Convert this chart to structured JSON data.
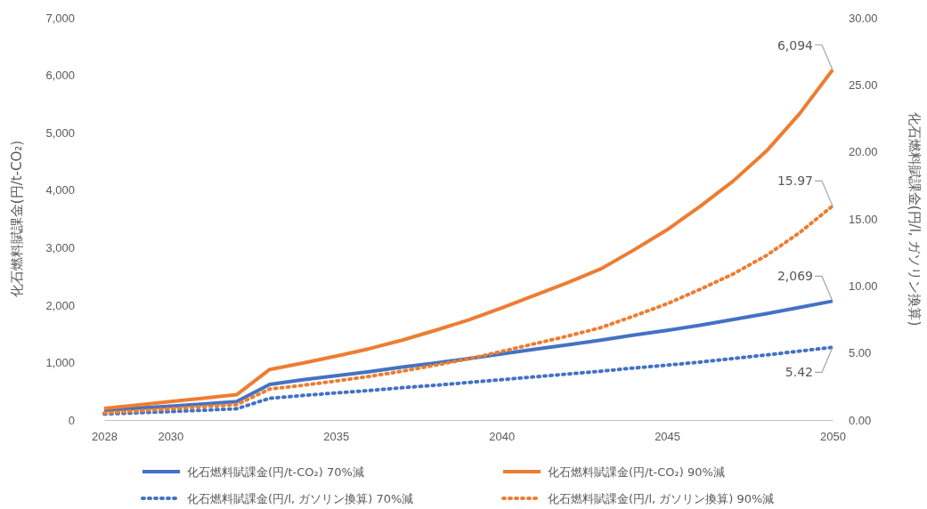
{
  "chart_data": {
    "type": "line",
    "xlabel": null,
    "ylabel": "化石燃料賦課金(円/t-CO₂)",
    "y2label": "化石燃料賦課金(円/l, ガソリン換算)",
    "x": [
      2028,
      2029,
      2030,
      2031,
      2032,
      2033,
      2034,
      2035,
      2036,
      2037,
      2038,
      2039,
      2040,
      2041,
      2042,
      2043,
      2044,
      2045,
      2046,
      2047,
      2048,
      2049,
      2050
    ],
    "xlim": [
      2028,
      2050
    ],
    "xticks": [
      2028,
      2030,
      2035,
      2040,
      2045,
      2050
    ],
    "ylim": [
      0,
      7000
    ],
    "yticks": [
      {
        "value": 0,
        "label": "0"
      },
      {
        "value": 1000,
        "label": "1,000"
      },
      {
        "value": 2000,
        "label": "2,000"
      },
      {
        "value": 3000,
        "label": "3,000"
      },
      {
        "value": 4000,
        "label": "4,000"
      },
      {
        "value": 5000,
        "label": "5,000"
      },
      {
        "value": 6000,
        "label": "6,000"
      },
      {
        "value": 7000,
        "label": "7,000"
      }
    ],
    "y2lim": [
      0,
      30
    ],
    "y2ticks": [
      {
        "value": 0,
        "label": "0.00"
      },
      {
        "value": 5,
        "label": "5.00"
      },
      {
        "value": 10,
        "label": "10.00"
      },
      {
        "value": 15,
        "label": "15.00"
      },
      {
        "value": 20,
        "label": "20.00"
      },
      {
        "value": 25,
        "label": "25.00"
      },
      {
        "value": 30,
        "label": "30.00"
      }
    ],
    "grid": false,
    "legend": "bottom",
    "marker": "none",
    "series": [
      {
        "name": "化石燃料賦課金(円/t-CO₂) 70%減",
        "color": "#4472c4",
        "line_style": "solid",
        "values": [
          170,
          205,
          240,
          280,
          320,
          620,
          700,
          770,
          840,
          920,
          990,
          1070,
          1150,
          1230,
          1310,
          1390,
          1480,
          1560,
          1650,
          1750,
          1850,
          1960,
          2069
        ],
        "value_labels": [
          null,
          null,
          null,
          null,
          null,
          null,
          null,
          null,
          null,
          null,
          null,
          null,
          null,
          null,
          null,
          null,
          null,
          null,
          null,
          null,
          null,
          null,
          "2,069"
        ]
      },
      {
        "name": "化石燃料賦課金(円/t-CO₂) 90%減",
        "color": "#ed7d31",
        "line_style": "solid",
        "values": [
          200,
          260,
          320,
          380,
          440,
          880,
          990,
          1110,
          1240,
          1390,
          1560,
          1740,
          1950,
          2170,
          2390,
          2630,
          2960,
          3310,
          3720,
          4160,
          4680,
          5330,
          6094
        ],
        "value_labels": [
          null,
          null,
          null,
          null,
          null,
          null,
          null,
          null,
          null,
          null,
          null,
          null,
          null,
          null,
          null,
          null,
          null,
          null,
          null,
          null,
          null,
          null,
          "6,094"
        ]
      },
      {
        "name": "化石燃料賦課金(円/l, ガソリン換算) 70%減",
        "color": "#4472c4",
        "line_style": "dotted",
        "axis": "y2",
        "values": [
          0.45,
          0.54,
          0.63,
          0.73,
          0.84,
          1.62,
          1.83,
          2.02,
          2.2,
          2.41,
          2.59,
          2.8,
          3.01,
          3.22,
          3.43,
          3.64,
          3.88,
          4.09,
          4.32,
          4.59,
          4.85,
          5.14,
          5.42
        ],
        "value_labels": [
          null,
          null,
          null,
          null,
          null,
          null,
          null,
          null,
          null,
          null,
          null,
          null,
          null,
          null,
          null,
          null,
          null,
          null,
          null,
          null,
          null,
          null,
          "5.42"
        ]
      },
      {
        "name": "化石燃料賦課金(円/l, ガソリン換算) 90%減",
        "color": "#ed7d31",
        "line_style": "dotted",
        "axis": "y2",
        "values": [
          0.52,
          0.68,
          0.84,
          1.0,
          1.15,
          2.31,
          2.59,
          2.91,
          3.25,
          3.64,
          4.09,
          4.56,
          5.11,
          5.69,
          6.26,
          6.89,
          7.76,
          8.67,
          9.75,
          10.9,
          12.27,
          13.97,
          15.97
        ],
        "value_labels": [
          null,
          null,
          null,
          null,
          null,
          null,
          null,
          null,
          null,
          null,
          null,
          null,
          null,
          null,
          null,
          null,
          null,
          null,
          null,
          null,
          null,
          null,
          "15.97"
        ]
      }
    ]
  }
}
